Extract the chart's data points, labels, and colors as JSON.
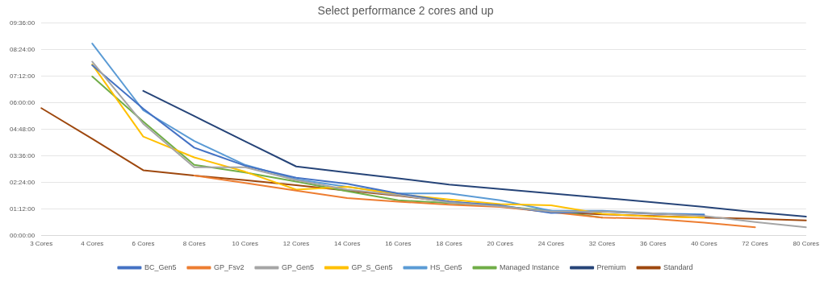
{
  "chart_data": {
    "type": "line",
    "title": "Select performance 2 cores and up",
    "categories": [
      "3 Cores",
      "4 Cores",
      "6 Cores",
      "8 Cores",
      "10 Cores",
      "12 Cores",
      "14 Cores",
      "16 Cores",
      "18 Cores",
      "20 Cores",
      "24 Cores",
      "32 Cores",
      "36 Cores",
      "40 Cores",
      "72 Cores",
      "80 Cores"
    ],
    "series": [
      {
        "name": "BC_Gen5",
        "color": "#4472c4",
        "values": [
          null,
          7.7,
          5.73,
          3.97,
          3.15,
          2.61,
          2.34,
          1.9,
          1.53,
          1.36,
          1.02,
          1.08,
          0.98,
          0.92,
          null,
          null
        ]
      },
      {
        "name": "GP_Fsv2",
        "color": "#ed7d31",
        "values": [
          null,
          null,
          null,
          2.71,
          2.37,
          2.03,
          1.69,
          1.53,
          1.39,
          1.29,
          1.05,
          0.81,
          0.75,
          0.58,
          0.37,
          null
        ]
      },
      {
        "name": "GP_Gen5",
        "color": "#a5a5a5",
        "values": [
          null,
          7.86,
          5.05,
          3.08,
          3.08,
          2.5,
          2.07,
          1.83,
          1.49,
          1.32,
          1.08,
          1.08,
          1.0,
          0.88,
          0.61,
          0.37
        ]
      },
      {
        "name": "GP_S_Gen5",
        "color": "#ffc000",
        "values": [
          null,
          7.73,
          4.47,
          3.53,
          2.88,
          2.07,
          2.2,
          1.86,
          1.63,
          1.42,
          1.36,
          0.98,
          0.85,
          0.81,
          null,
          null
        ]
      },
      {
        "name": "HS_Gen5",
        "color": "#5b9bd5",
        "values": [
          null,
          8.68,
          5.66,
          4.27,
          3.19,
          2.54,
          2.2,
          1.9,
          1.9,
          1.59,
          1.12,
          1.12,
          1.0,
          0.95,
          null,
          null
        ]
      },
      {
        "name": "Managed Instance",
        "color": "#70ad47",
        "values": [
          null,
          7.19,
          5.15,
          3.19,
          2.85,
          2.44,
          2.0,
          1.59,
          1.46,
          1.32,
          1.12,
          0.81,
          null,
          null,
          null,
          null
        ]
      },
      {
        "name": "Premium",
        "color": "#264478",
        "values": [
          null,
          null,
          6.54,
          5.4,
          4.25,
          3.12,
          2.85,
          2.58,
          2.3,
          2.1,
          1.9,
          1.7,
          1.5,
          1.29,
          1.05,
          0.85
        ]
      },
      {
        "name": "Standard",
        "color": "#9e480e",
        "values": [
          5.76,
          4.37,
          2.95,
          2.71,
          2.5,
          2.27,
          2.03,
          1.8,
          1.53,
          1.32,
          1.05,
          0.95,
          0.88,
          0.81,
          0.75,
          0.68
        ]
      }
    ],
    "ylim": [
      0,
      9.6
    ],
    "yticks": [
      {
        "value": 0,
        "label": "00:00:00"
      },
      {
        "value": 1.2,
        "label": "01:12:00"
      },
      {
        "value": 2.4,
        "label": "02:24:00"
      },
      {
        "value": 3.6,
        "label": "03:36:00"
      },
      {
        "value": 4.8,
        "label": "04:48:00"
      },
      {
        "value": 6,
        "label": "06:00:00"
      },
      {
        "value": 7.2,
        "label": "07:12:00"
      },
      {
        "value": 8.4,
        "label": "08:24:00"
      },
      {
        "value": 9.6,
        "label": "09:36:00"
      }
    ],
    "grid": "y",
    "legend": "bottom",
    "marker": "none",
    "line_style": "solid"
  }
}
